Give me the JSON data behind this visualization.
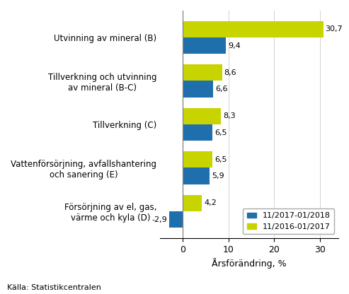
{
  "categories": [
    "Utvinning av mineral (B)",
    "Tillverkning och utvinning\nav mineral (B-C)",
    "Tillverkning (C)",
    "Vattenförsörjning, avfallshantering\noch sanering (E)",
    "Försörjning av el, gas,\nvärme och kyla (D)"
  ],
  "series1_label": "11/2017-01/2018",
  "series2_label": "11/2016-01/2017",
  "series1_values": [
    9.4,
    6.6,
    6.5,
    5.9,
    -2.9
  ],
  "series2_values": [
    30.7,
    8.6,
    8.3,
    6.5,
    4.2
  ],
  "series1_color": "#1f6fad",
  "series2_color": "#c8d400",
  "xlabel": "Årsförändring, %",
  "source": "Källa: Statistikcentralen",
  "xlim": [
    -5,
    34
  ],
  "xticks": [
    0,
    10,
    20,
    30
  ],
  "xtick_labels": [
    "0",
    "10",
    "20",
    "30"
  ],
  "background_color": "#ffffff"
}
